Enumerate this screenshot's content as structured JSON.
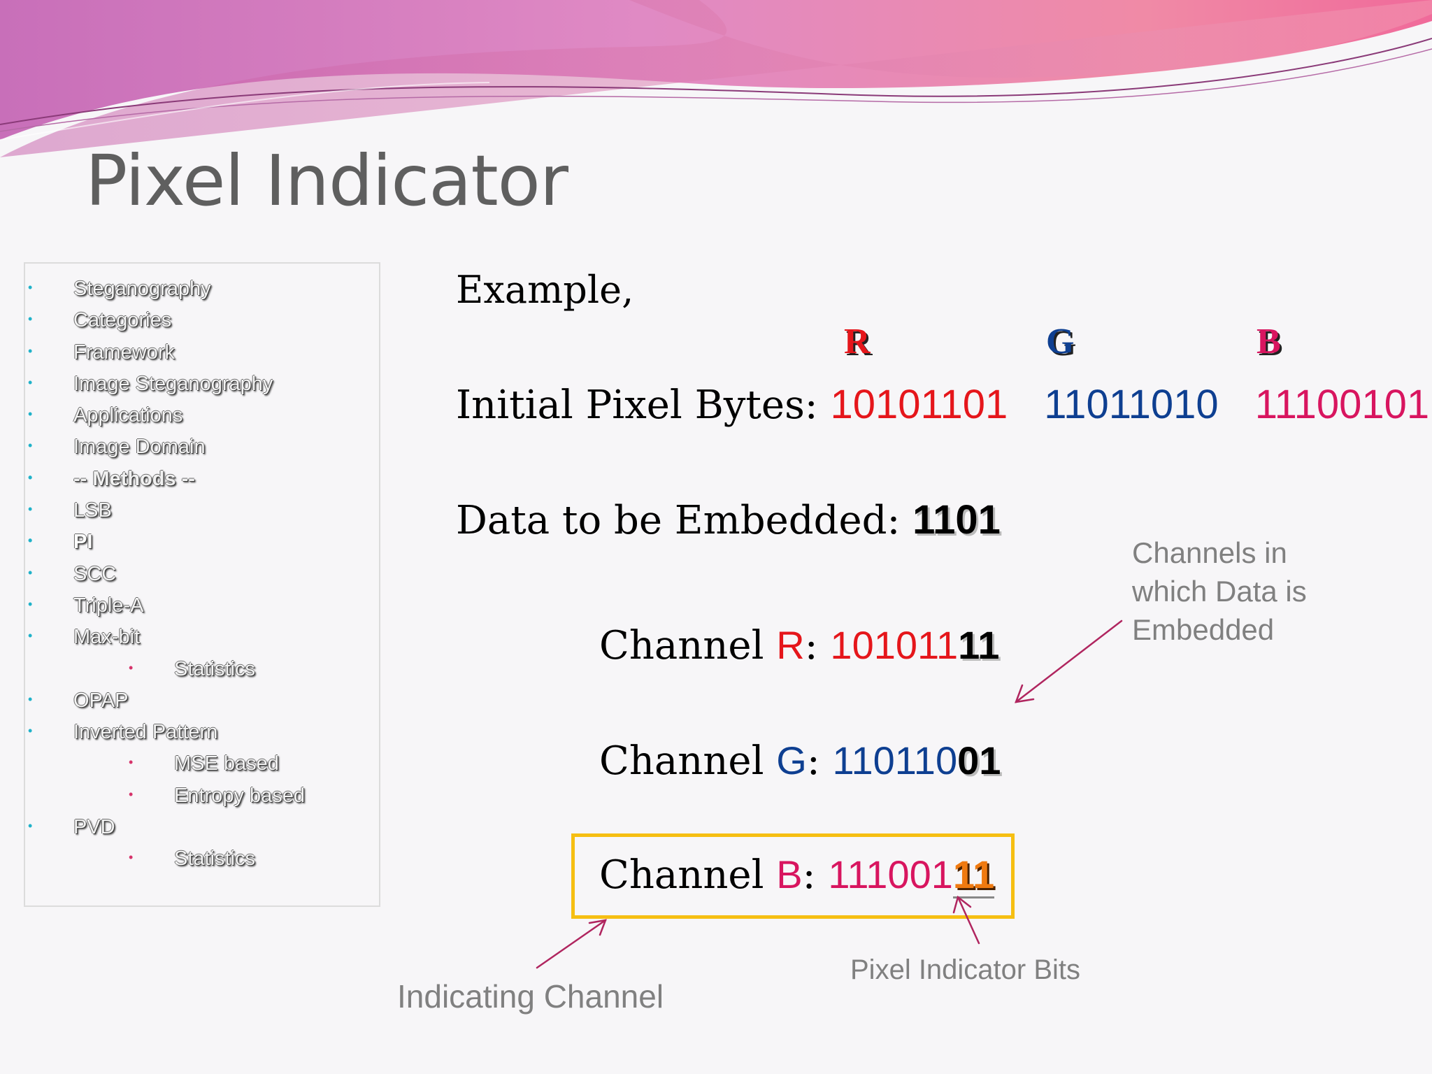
{
  "title": "Pixel Indicator",
  "sidebar": {
    "items": [
      {
        "label": "Steganography",
        "level": 1
      },
      {
        "label": "Categories",
        "level": 1
      },
      {
        "label": "Framework",
        "level": 1
      },
      {
        "label": "Image Steganography",
        "level": 1
      },
      {
        "label": "Applications",
        "level": 1
      },
      {
        "label": "Image Domain",
        "level": 1
      },
      {
        "label": "-- Methods --",
        "level": 1
      },
      {
        "label": "LSB",
        "level": 1
      },
      {
        "label": "PI",
        "level": 1
      },
      {
        "label": "SCC",
        "level": 1
      },
      {
        "label": "Triple-A",
        "level": 1
      },
      {
        "label": "Max-bit",
        "level": 1
      },
      {
        "label": "Statistics",
        "level": 2
      },
      {
        "label": "OPAP",
        "level": 1
      },
      {
        "label": "Inverted Pattern",
        "level": 1
      },
      {
        "label": "MSE based",
        "level": 2
      },
      {
        "label": "Entropy based",
        "level": 2
      },
      {
        "label": "PVD",
        "level": 1
      },
      {
        "label": "Statistics",
        "level": 2
      }
    ],
    "bullet_glyph": "•",
    "active_item": "PI"
  },
  "content": {
    "example_label": "Example,",
    "rgb_headers": {
      "r": "R",
      "g": "G",
      "b": "B"
    },
    "initial": {
      "label": "Initial Pixel Bytes: ",
      "r_bits": "10101101",
      "g_bits": "11011010",
      "b_bits": "11100101"
    },
    "data": {
      "label": "Data to be Embedded: ",
      "value": "1101"
    },
    "channels": {
      "prefix": "Channel ",
      "sep": ": ",
      "r": {
        "name": "R",
        "bits_plain": "101011",
        "bits_emph": "11"
      },
      "g": {
        "name": "G",
        "bits_plain": "110110",
        "bits_emph": "01"
      },
      "b": {
        "name": "B",
        "bits_plain": "111001",
        "bits_emph": "11"
      }
    },
    "annotations": {
      "channels_embedded": "Channels in which Data is Embedded",
      "pixel_indicator_bits": "Pixel Indicator Bits",
      "indicating_channel": "Indicating Channel"
    }
  },
  "colors": {
    "red": "#e5161b",
    "green_blue": "#0e3f91",
    "magenta": "#d8155f",
    "orange": "#f07a10",
    "box": "#f6bf12",
    "arrow": "#b0255f",
    "note": "#808080"
  }
}
